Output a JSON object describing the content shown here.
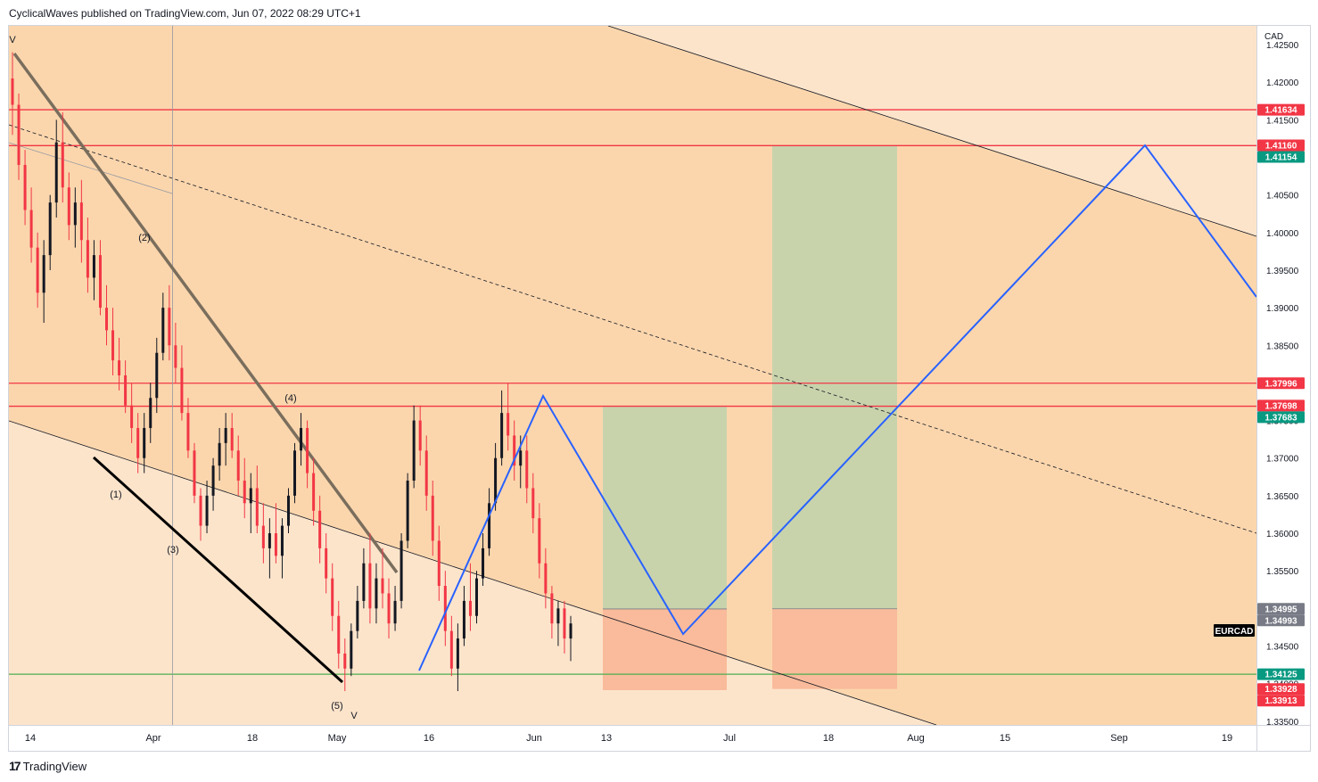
{
  "header": {
    "published_text": "CyclicalWaves published on TradingView.com, Jun 07, 2022 08:29 UTC+1"
  },
  "footer": {
    "brand_label": "TradingView",
    "logo_icon": "tradingview-logo-icon"
  },
  "chart_data": {
    "type": "candlestick",
    "symbol": "EURCAD",
    "currency_label": "CAD",
    "x_tick_labels": [
      "14",
      "Apr",
      "18",
      "May",
      "16",
      "Jun",
      "13",
      "Jul",
      "18",
      "Aug",
      "15",
      "Sep",
      "19"
    ],
    "y_tick_labels": [
      "1.42500",
      "1.42000",
      "1.41500",
      "1.41000",
      "1.40500",
      "1.40000",
      "1.39500",
      "1.39000",
      "1.38500",
      "1.38000",
      "1.37500",
      "1.37000",
      "1.36500",
      "1.36000",
      "1.35500",
      "1.35000",
      "1.34500",
      "1.34000",
      "1.33500"
    ],
    "ylim": [
      1.3345,
      1.4275
    ],
    "price_badges": [
      {
        "value": "1.41634",
        "color": "#f23645"
      },
      {
        "value": "1.41160",
        "color": "#f23645"
      },
      {
        "value": "1.41154",
        "color": "#089981"
      },
      {
        "value": "1.37996",
        "color": "#f23645"
      },
      {
        "value": "1.37698",
        "color": "#f23645"
      },
      {
        "value": "1.37683",
        "color": "#089981"
      },
      {
        "value": "1.34995",
        "color": "#787b86"
      },
      {
        "value": "1.34993",
        "color": "#787b86"
      },
      {
        "value": "1.34125",
        "color": "#089981"
      },
      {
        "value": "1.33928",
        "color": "#f23645"
      },
      {
        "value": "1.33913",
        "color": "#f23645"
      }
    ],
    "horizontal_levels": [
      {
        "price": 1.41634,
        "color": "#f23645"
      },
      {
        "price": 1.41157,
        "color": "#f23645"
      },
      {
        "price": 1.37996,
        "color": "#f23645"
      },
      {
        "price": 1.3769,
        "color": "#f23645"
      },
      {
        "price": 1.34125,
        "color": "#4caf50"
      }
    ],
    "wave_labels": [
      "V",
      "(1)",
      "(2)",
      "(3)",
      "(4)",
      "(5)",
      "V"
    ],
    "symbol_badge": "EURCAD",
    "colors": {
      "background_zone": "#fbd6ad",
      "outside_channel": "#fce4cb",
      "target_zone": "#c8d3ac",
      "stop_zone": "#f9bb9b",
      "projection_line": "#2962ff",
      "candle_up": "#131722",
      "candle_down": "#f23645"
    },
    "candles": [
      [
        1.4205,
        1.424,
        1.413,
        1.417
      ],
      [
        1.417,
        1.4185,
        1.407,
        1.409
      ],
      [
        1.409,
        1.411,
        1.401,
        1.403
      ],
      [
        1.403,
        1.406,
        1.396,
        1.398
      ],
      [
        1.398,
        1.4,
        1.39,
        1.392
      ],
      [
        1.392,
        1.399,
        1.388,
        1.397
      ],
      [
        1.397,
        1.405,
        1.395,
        1.404
      ],
      [
        1.404,
        1.415,
        1.402,
        1.412
      ],
      [
        1.412,
        1.416,
        1.404,
        1.406
      ],
      [
        1.406,
        1.408,
        1.399,
        1.401
      ],
      [
        1.401,
        1.406,
        1.398,
        1.404
      ],
      [
        1.404,
        1.407,
        1.396,
        1.399
      ],
      [
        1.399,
        1.402,
        1.392,
        1.394
      ],
      [
        1.394,
        1.399,
        1.391,
        1.397
      ],
      [
        1.397,
        1.399,
        1.389,
        1.39
      ],
      [
        1.39,
        1.393,
        1.385,
        1.387
      ],
      [
        1.387,
        1.39,
        1.381,
        1.383
      ],
      [
        1.383,
        1.386,
        1.379,
        1.381
      ],
      [
        1.381,
        1.383,
        1.376,
        1.377
      ],
      [
        1.377,
        1.38,
        1.372,
        1.374
      ],
      [
        1.374,
        1.376,
        1.368,
        1.37
      ],
      [
        1.37,
        1.376,
        1.368,
        1.374
      ],
      [
        1.374,
        1.38,
        1.372,
        1.378
      ],
      [
        1.378,
        1.386,
        1.376,
        1.384
      ],
      [
        1.384,
        1.392,
        1.383,
        1.39
      ],
      [
        1.39,
        1.393,
        1.383,
        1.385
      ],
      [
        1.385,
        1.388,
        1.38,
        1.382
      ],
      [
        1.382,
        1.385,
        1.375,
        1.376
      ],
      [
        1.376,
        1.378,
        1.37,
        1.371
      ],
      [
        1.371,
        1.372,
        1.364,
        1.365
      ],
      [
        1.365,
        1.366,
        1.359,
        1.361
      ],
      [
        1.361,
        1.367,
        1.36,
        1.365
      ],
      [
        1.365,
        1.37,
        1.363,
        1.369
      ],
      [
        1.369,
        1.374,
        1.367,
        1.372
      ],
      [
        1.372,
        1.376,
        1.369,
        1.374
      ],
      [
        1.374,
        1.376,
        1.37,
        1.371
      ],
      [
        1.371,
        1.373,
        1.365,
        1.367
      ],
      [
        1.367,
        1.37,
        1.362,
        1.364
      ],
      [
        1.364,
        1.368,
        1.36,
        1.366
      ],
      [
        1.366,
        1.369,
        1.36,
        1.361
      ],
      [
        1.361,
        1.364,
        1.356,
        1.358
      ],
      [
        1.358,
        1.362,
        1.354,
        1.36
      ],
      [
        1.36,
        1.364,
        1.356,
        1.357
      ],
      [
        1.357,
        1.362,
        1.354,
        1.361
      ],
      [
        1.361,
        1.366,
        1.36,
        1.365
      ],
      [
        1.365,
        1.372,
        1.364,
        1.371
      ],
      [
        1.371,
        1.376,
        1.369,
        1.374
      ],
      [
        1.374,
        1.375,
        1.366,
        1.368
      ],
      [
        1.368,
        1.37,
        1.361,
        1.363
      ],
      [
        1.363,
        1.365,
        1.356,
        1.358
      ],
      [
        1.358,
        1.36,
        1.352,
        1.354
      ],
      [
        1.354,
        1.356,
        1.347,
        1.349
      ],
      [
        1.349,
        1.351,
        1.342,
        1.344
      ],
      [
        1.344,
        1.346,
        1.339,
        1.342
      ],
      [
        1.342,
        1.348,
        1.341,
        1.347
      ],
      [
        1.347,
        1.353,
        1.346,
        1.351
      ],
      [
        1.351,
        1.358,
        1.35,
        1.356
      ],
      [
        1.356,
        1.36,
        1.348,
        1.35
      ],
      [
        1.35,
        1.356,
        1.348,
        1.354
      ],
      [
        1.354,
        1.358,
        1.35,
        1.352
      ],
      [
        1.352,
        1.354,
        1.346,
        1.348
      ],
      [
        1.348,
        1.353,
        1.347,
        1.351
      ],
      [
        1.351,
        1.36,
        1.35,
        1.359
      ],
      [
        1.359,
        1.368,
        1.358,
        1.367
      ],
      [
        1.367,
        1.377,
        1.366,
        1.375
      ],
      [
        1.375,
        1.377,
        1.369,
        1.371
      ],
      [
        1.371,
        1.373,
        1.363,
        1.365
      ],
      [
        1.365,
        1.367,
        1.357,
        1.359
      ],
      [
        1.359,
        1.361,
        1.351,
        1.353
      ],
      [
        1.353,
        1.355,
        1.345,
        1.347
      ],
      [
        1.347,
        1.349,
        1.341,
        1.342
      ],
      [
        1.342,
        1.348,
        1.339,
        1.346
      ],
      [
        1.346,
        1.353,
        1.345,
        1.351
      ],
      [
        1.351,
        1.356,
        1.347,
        1.349
      ],
      [
        1.349,
        1.355,
        1.348,
        1.354
      ],
      [
        1.354,
        1.36,
        1.353,
        1.358
      ],
      [
        1.358,
        1.366,
        1.357,
        1.364
      ],
      [
        1.364,
        1.372,
        1.363,
        1.37
      ],
      [
        1.37,
        1.379,
        1.369,
        1.376
      ],
      [
        1.376,
        1.38,
        1.371,
        1.373
      ],
      [
        1.373,
        1.375,
        1.367,
        1.369
      ],
      [
        1.369,
        1.373,
        1.366,
        1.371
      ],
      [
        1.371,
        1.373,
        1.364,
        1.366
      ],
      [
        1.366,
        1.368,
        1.36,
        1.362
      ],
      [
        1.362,
        1.364,
        1.354,
        1.356
      ],
      [
        1.356,
        1.358,
        1.35,
        1.352
      ],
      [
        1.352,
        1.353,
        1.346,
        1.348
      ],
      [
        1.348,
        1.351,
        1.345,
        1.35
      ],
      [
        1.35,
        1.351,
        1.344,
        1.346
      ],
      [
        1.346,
        1.349,
        1.343,
        1.348
      ]
    ]
  }
}
